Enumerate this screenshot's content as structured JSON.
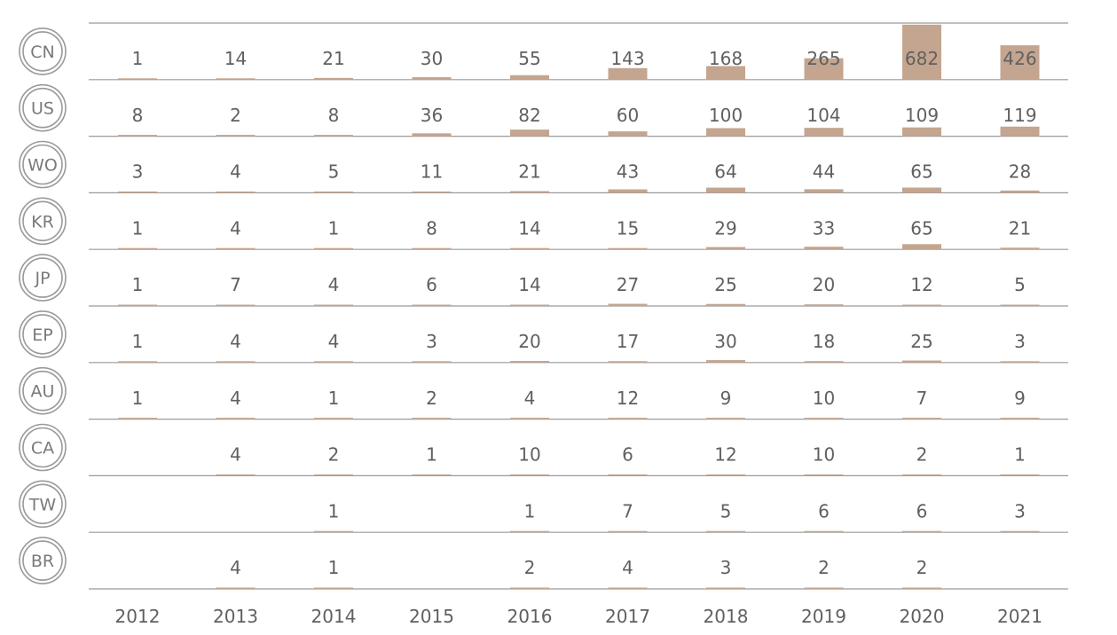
{
  "chart_data": {
    "type": "bar",
    "title": "",
    "xlabel": "",
    "ylabel": "",
    "categories": [
      "2012",
      "2013",
      "2014",
      "2015",
      "2016",
      "2017",
      "2018",
      "2019",
      "2020",
      "2021"
    ],
    "ylim": [
      0,
      682
    ],
    "grid": false,
    "legend": "none",
    "series": [
      {
        "name": "CN",
        "values": [
          1,
          14,
          21,
          30,
          55,
          143,
          168,
          265,
          682,
          426
        ]
      },
      {
        "name": "US",
        "values": [
          8,
          2,
          8,
          36,
          82,
          60,
          100,
          104,
          109,
          119
        ]
      },
      {
        "name": "WO",
        "values": [
          3,
          4,
          5,
          11,
          21,
          43,
          64,
          44,
          65,
          28
        ]
      },
      {
        "name": "KR",
        "values": [
          1,
          4,
          1,
          8,
          14,
          15,
          29,
          33,
          65,
          21
        ]
      },
      {
        "name": "JP",
        "values": [
          1,
          7,
          4,
          6,
          14,
          27,
          25,
          20,
          12,
          5
        ]
      },
      {
        "name": "EP",
        "values": [
          1,
          4,
          4,
          3,
          20,
          17,
          30,
          18,
          25,
          3
        ]
      },
      {
        "name": "AU",
        "values": [
          1,
          4,
          1,
          2,
          4,
          12,
          9,
          10,
          7,
          9
        ]
      },
      {
        "name": "CA",
        "values": [
          null,
          4,
          2,
          1,
          10,
          6,
          12,
          10,
          2,
          1
        ]
      },
      {
        "name": "TW",
        "values": [
          null,
          null,
          1,
          null,
          1,
          7,
          5,
          6,
          6,
          3
        ]
      },
      {
        "name": "BR",
        "values": [
          null,
          4,
          1,
          null,
          2,
          4,
          3,
          2,
          2,
          null
        ]
      }
    ]
  },
  "colors": {
    "bar": "#c4a58f",
    "grid_line": "#9a9a9a",
    "text": "#606060",
    "badge_ring": "#9a9a9a"
  }
}
